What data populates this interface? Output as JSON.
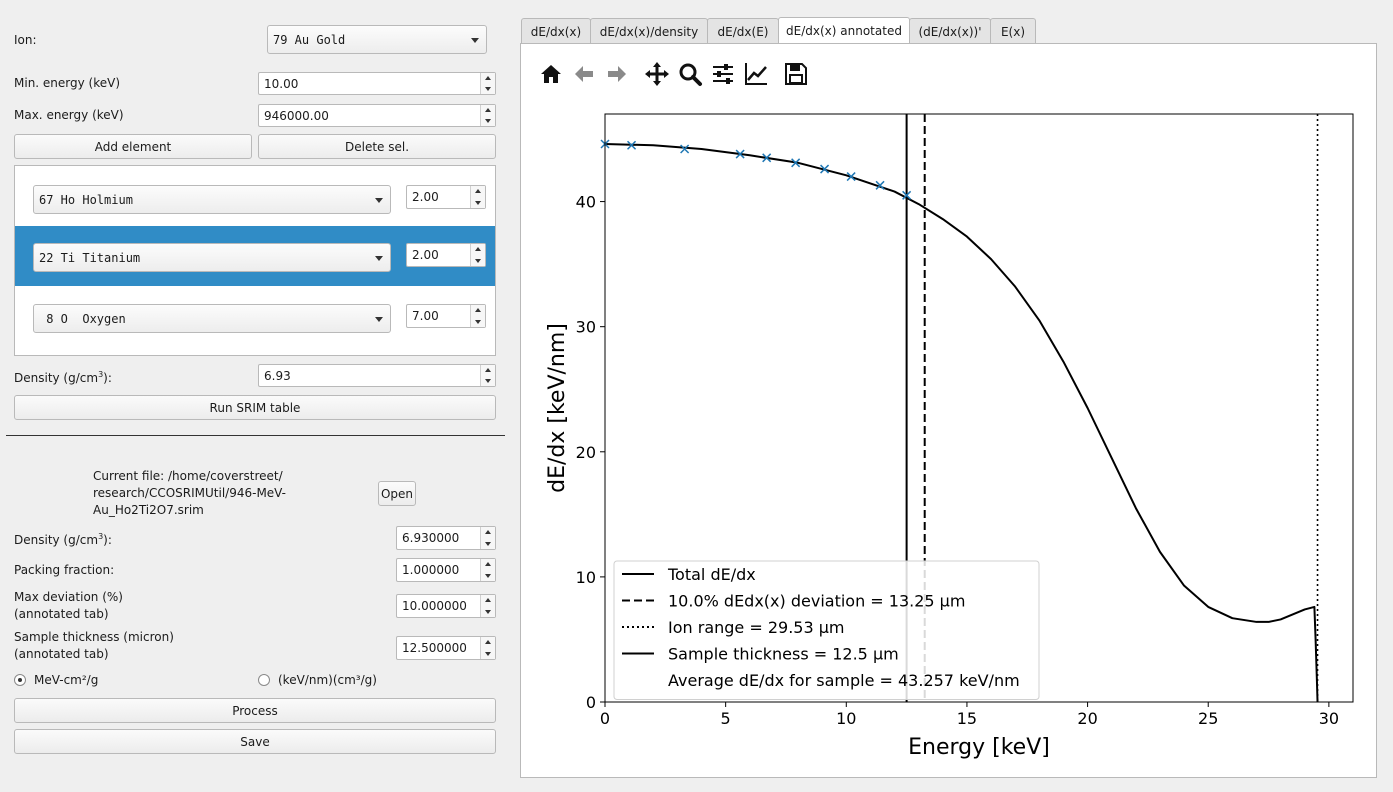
{
  "ion": {
    "label": "Ion:",
    "value": "79 Au Gold"
  },
  "min_energy": {
    "label": "Min. energy (keV)",
    "value": "10.00"
  },
  "max_energy": {
    "label": "Max. energy (keV)",
    "value": "946000.00"
  },
  "buttons": {
    "add_element": "Add element",
    "delete_sel": "Delete sel.",
    "run_srim": "Run SRIM table",
    "open": "Open",
    "process": "Process",
    "save": "Save"
  },
  "elements": [
    {
      "element": "67 Ho Holmium",
      "amount": "2.00",
      "selected": false
    },
    {
      "element": "22 Ti Titanium",
      "amount": "2.00",
      "selected": true
    },
    {
      "element": " 8 O  Oxygen",
      "amount": "7.00",
      "selected": false
    }
  ],
  "density_top": {
    "label_pre": "Density (g/cm",
    "label_sup": "3",
    "label_post": "):",
    "value": "6.93"
  },
  "current_file": {
    "line1": "Current file: /home/coverstreet/",
    "line2": "research/CCOSRIMUtil/946-MeV-",
    "line3": "Au_Ho2Ti2O7.srim"
  },
  "density_bottom": {
    "label_pre": "Density (g/cm",
    "label_sup": "3",
    "label_post": "):",
    "value": "6.930000"
  },
  "packing": {
    "label": "Packing fraction:",
    "value": "1.000000"
  },
  "max_dev": {
    "label1": "Max deviation (%)",
    "label2": "(annotated tab)",
    "value": "10.000000"
  },
  "thickness": {
    "label1": "Sample thickness (micron)",
    "label2": "(annotated tab)",
    "value": "12.500000"
  },
  "units": {
    "opt1": "MeV-cm²/g",
    "opt2": "(keV/nm)(cm³/g)",
    "selected": "MeV-cm²/g"
  },
  "tabs": [
    "dE/dx(x)",
    "dE/dx(x)/density",
    "dE/dx(E)",
    "dE/dx(x) annotated",
    "(dE/dx(x))'",
    "E(x)"
  ],
  "active_tab": "dE/dx(x) annotated",
  "toolbar_icons": [
    "home-icon",
    "back-arrow-icon",
    "forward-arrow-icon",
    "pan-icon",
    "zoom-icon",
    "subplots-icon",
    "axes-edit-icon",
    "save-icon"
  ],
  "chart_data": {
    "type": "line",
    "xlabel": "Energy [keV]",
    "ylabel": "dE/dx [keV/nm]",
    "xlim": [
      0,
      31
    ],
    "ylim": [
      0,
      47
    ],
    "xticks": [
      0,
      5,
      10,
      15,
      20,
      25,
      30
    ],
    "yticks": [
      0,
      10,
      20,
      30,
      40
    ],
    "series": [
      {
        "name": "Total dE/dx",
        "style": "solid",
        "x": [
          0,
          2,
          4,
          6,
          8,
          10,
          12,
          13,
          14,
          15,
          16,
          17,
          18,
          19,
          20,
          21,
          22,
          23,
          24,
          25,
          26,
          27,
          27.5,
          28,
          28.5,
          29,
          29.4,
          29.45,
          29.5,
          29.53
        ],
        "y": [
          44.6,
          44.5,
          44.2,
          43.7,
          43.1,
          42.1,
          40.8,
          39.8,
          38.6,
          37.2,
          35.4,
          33.2,
          30.5,
          27.2,
          23.5,
          19.5,
          15.5,
          12.0,
          9.3,
          7.6,
          6.7,
          6.4,
          6.4,
          6.6,
          7.0,
          7.4,
          7.6,
          5.0,
          2.0,
          0
        ]
      }
    ],
    "markers": {
      "style": "x",
      "color": "#1f77b4",
      "x": [
        0,
        1.1,
        3.3,
        5.6,
        6.7,
        7.9,
        9.1,
        10.2,
        11.4,
        12.5
      ],
      "y": [
        44.6,
        44.5,
        44.2,
        43.8,
        43.5,
        43.1,
        42.6,
        42.0,
        41.3,
        40.5
      ]
    },
    "vlines": [
      {
        "x": 12.5,
        "style": "solid",
        "legend": "Sample thickness = 12.5 μm"
      },
      {
        "x": 13.25,
        "style": "dashed",
        "legend": "10.0% dEdx(x) deviation = 13.25 μm"
      },
      {
        "x": 29.53,
        "style": "dotted",
        "legend": "Ion range = 29.53 μm"
      }
    ],
    "legend": {
      "placement": "lower-left",
      "entries": [
        {
          "style": "solid",
          "label": "Total dE/dx"
        },
        {
          "style": "dashed",
          "label": "10.0% dEdx(x) deviation = 13.25 μm"
        },
        {
          "style": "dotted",
          "label": "Ion range = 29.53 μm"
        },
        {
          "style": "solid",
          "label": "Sample thickness = 12.5 μm"
        },
        {
          "style": "none",
          "label": "Average dE/dx for sample = 43.257 keV/nm"
        }
      ]
    }
  }
}
